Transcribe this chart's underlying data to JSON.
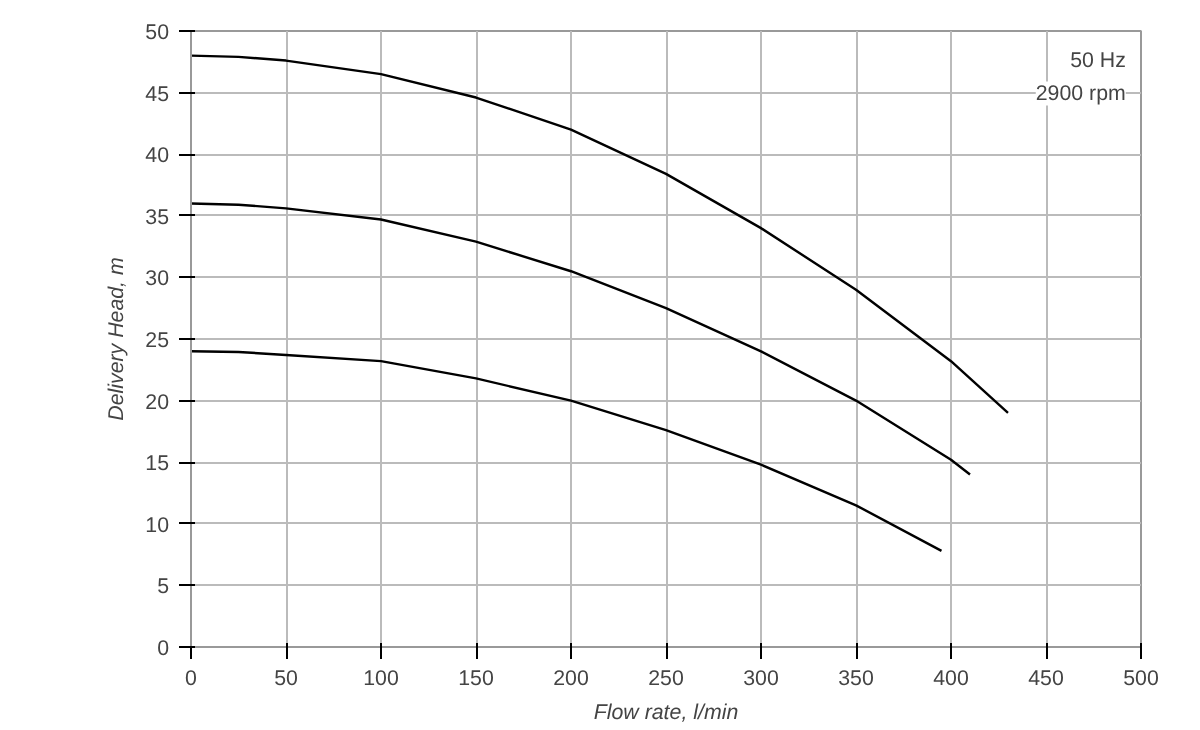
{
  "chart_data": {
    "type": "line",
    "xlabel": "Flow rate, l/min",
    "ylabel": "Delivery Head, m",
    "annotations": [
      "50 Hz",
      "2900 rpm"
    ],
    "xlim": [
      0,
      500
    ],
    "ylim": [
      0,
      50
    ],
    "xticks": [
      0,
      50,
      100,
      150,
      200,
      250,
      300,
      350,
      400,
      450,
      500
    ],
    "yticks": [
      0,
      5,
      10,
      15,
      20,
      25,
      30,
      35,
      40,
      45,
      50
    ],
    "grid": true,
    "marker": "none",
    "line_style": "solid",
    "series": [
      {
        "color": "#000000",
        "x": [
          0,
          25,
          50,
          100,
          150,
          200,
          250,
          300,
          350,
          400,
          430
        ],
        "values": [
          48,
          47.9,
          47.6,
          46.5,
          44.6,
          42,
          38.4,
          34,
          29,
          23.2,
          19
        ]
      },
      {
        "color": "#000000",
        "x": [
          0,
          25,
          50,
          100,
          150,
          200,
          250,
          300,
          350,
          400,
          410
        ],
        "values": [
          36,
          35.9,
          35.6,
          34.7,
          32.9,
          30.5,
          27.5,
          24,
          20,
          15.2,
          14
        ]
      },
      {
        "color": "#000000",
        "x": [
          0,
          25,
          50,
          100,
          150,
          200,
          250,
          300,
          350,
          395
        ],
        "values": [
          24,
          23.95,
          23.7,
          23.2,
          21.8,
          20,
          17.6,
          14.8,
          11.5,
          7.8
        ]
      }
    ]
  }
}
